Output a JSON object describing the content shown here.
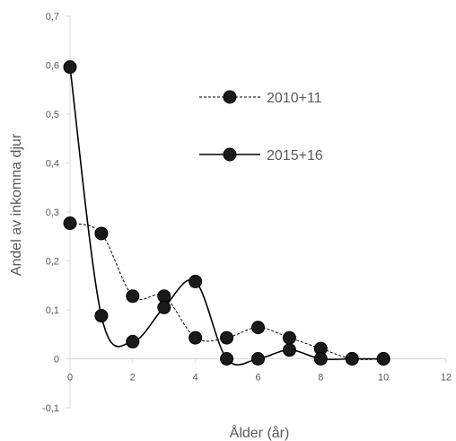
{
  "chart_data": {
    "type": "scatter",
    "title": "",
    "xlabel": "Ålder (år)",
    "ylabel": "Andel av inkomna djur",
    "xlim": [
      0,
      12
    ],
    "ylim": [
      -0.1,
      0.7
    ],
    "x_ticks": [
      "0",
      "2",
      "4",
      "6",
      "8",
      "10",
      "12"
    ],
    "y_ticks": [
      "-0,1",
      "0",
      "0,1",
      "0,2",
      "0,3",
      "0,4",
      "0,5",
      "0,6",
      "0,7"
    ],
    "grid": false,
    "legend_position": "right",
    "series": [
      {
        "name": "2010+11",
        "line_style": "dashed",
        "color": "#000000",
        "points": [
          {
            "x": 0,
            "y": 0.277
          },
          {
            "x": 1,
            "y": 0.256
          },
          {
            "x": 2,
            "y": 0.128
          },
          {
            "x": 3,
            "y": 0.128
          },
          {
            "x": 4,
            "y": 0.043
          },
          {
            "x": 5,
            "y": 0.043
          },
          {
            "x": 6,
            "y": 0.064
          },
          {
            "x": 7,
            "y": 0.043
          },
          {
            "x": 8,
            "y": 0.021
          },
          {
            "x": 9,
            "y": 0
          },
          {
            "x": 10,
            "y": 0
          }
        ]
      },
      {
        "name": "2015+16",
        "line_style": "solid",
        "color": "#000000",
        "points": [
          {
            "x": 0,
            "y": 0.596
          },
          {
            "x": 1,
            "y": 0.088
          },
          {
            "x": 2,
            "y": 0.035
          },
          {
            "x": 3,
            "y": 0.105
          },
          {
            "x": 4,
            "y": 0.158
          },
          {
            "x": 5,
            "y": 0
          },
          {
            "x": 6,
            "y": 0
          },
          {
            "x": 7,
            "y": 0.018
          },
          {
            "x": 8,
            "y": 0
          },
          {
            "x": 9,
            "y": 0
          },
          {
            "x": 10,
            "y": 0
          }
        ]
      }
    ]
  }
}
